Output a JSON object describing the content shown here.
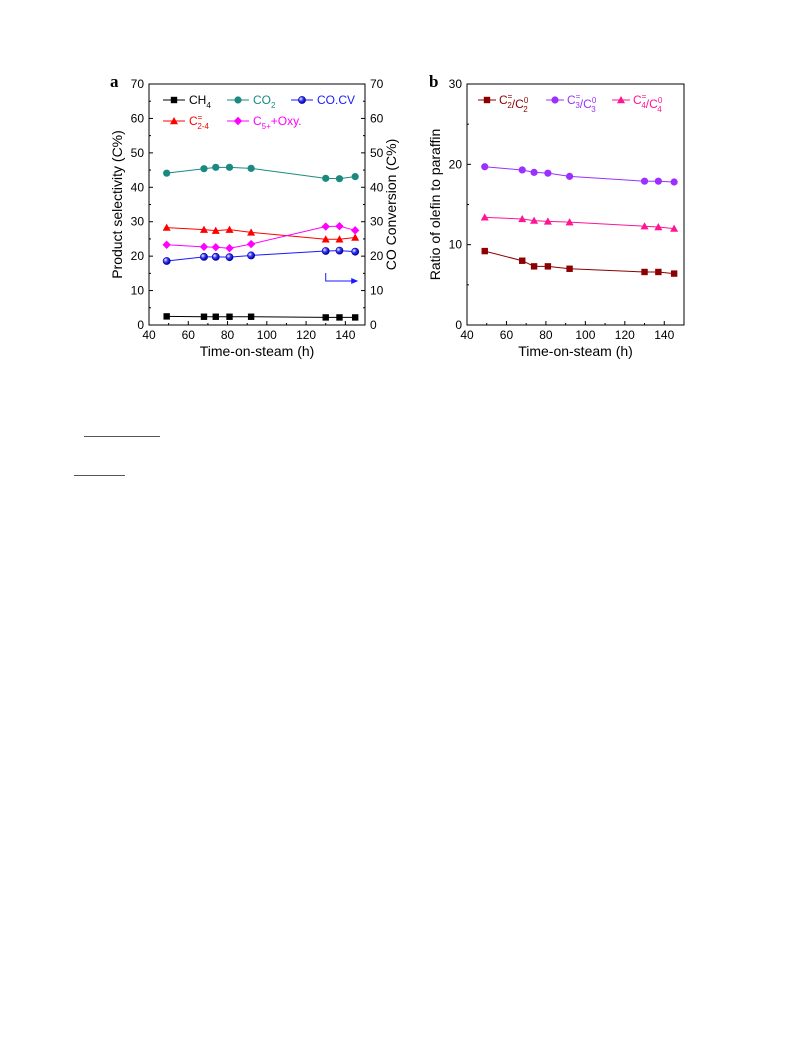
{
  "panels": [
    {
      "label": "a"
    },
    {
      "label": "b"
    }
  ],
  "chart_data": [
    {
      "type": "line",
      "panel": "a",
      "xlabel": "Time-on-steam (h)",
      "ylabel": "Product selectivity (C%)",
      "ylabel_right": "CO Conversion (C%)",
      "xlim": [
        40,
        150
      ],
      "ylim": [
        0,
        70
      ],
      "ylim_right": [
        0,
        70
      ],
      "xticks": [
        40,
        60,
        80,
        100,
        120,
        140
      ],
      "yticks": [
        0,
        10,
        20,
        30,
        40,
        50,
        60,
        70
      ],
      "grid": false,
      "legend_position": "top",
      "arrow_note": "CO.CV plotted on right axis",
      "series": [
        {
          "name": "CH4",
          "legend_main": "CH",
          "legend_sub": "4",
          "legend_sup": "",
          "color": "#000000",
          "marker": "square",
          "axis": "left",
          "x": [
            49,
            68,
            74,
            81,
            92,
            130,
            137,
            145
          ],
          "y": [
            2.5,
            2.4,
            2.4,
            2.4,
            2.4,
            2.2,
            2.2,
            2.2
          ]
        },
        {
          "name": "CO2",
          "legend_main": "CO",
          "legend_sub": "2",
          "legend_sup": "",
          "color": "#1a8a80",
          "marker": "circle",
          "axis": "left",
          "x": [
            49,
            68,
            74,
            81,
            92,
            130,
            137,
            145
          ],
          "y": [
            44.1,
            45.4,
            45.8,
            45.8,
            45.5,
            42.6,
            42.5,
            43.1
          ]
        },
        {
          "name": "CO.CV",
          "legend_main": "CO.CV",
          "legend_sub": "",
          "legend_sup": "",
          "color": "#1a1aff",
          "marker": "ball",
          "axis": "right",
          "x": [
            49,
            68,
            74,
            81,
            92,
            130,
            137,
            145
          ],
          "y": [
            18.6,
            19.8,
            19.8,
            19.7,
            20.2,
            21.5,
            21.6,
            21.3
          ]
        },
        {
          "name": "C2-4=",
          "legend_main": "C",
          "legend_sub": "2-4",
          "legend_sup": "=",
          "color": "#ff0000",
          "marker": "triangle",
          "axis": "left",
          "x": [
            49,
            68,
            74,
            81,
            92,
            130,
            137,
            145
          ],
          "y": [
            28.3,
            27.7,
            27.4,
            27.7,
            26.9,
            24.9,
            24.9,
            25.4
          ]
        },
        {
          "name": "C5++Oxy.",
          "legend_main": "C",
          "legend_sub": "5+",
          "legend_sup": "",
          "legend_suffix": "+Oxy.",
          "color": "#ff00ff",
          "marker": "diamond",
          "axis": "left",
          "x": [
            49,
            68,
            74,
            81,
            92,
            130,
            137,
            145
          ],
          "y": [
            23.3,
            22.7,
            22.6,
            22.3,
            23.5,
            28.6,
            28.7,
            27.5
          ]
        }
      ]
    },
    {
      "type": "line",
      "panel": "b",
      "xlabel": "Time-on-steam (h)",
      "ylabel": "Ratio of olefin to paraffin",
      "xlim": [
        40,
        150
      ],
      "ylim": [
        0,
        30
      ],
      "xticks": [
        40,
        60,
        80,
        100,
        120,
        140
      ],
      "yticks": [
        0,
        10,
        20,
        30
      ],
      "grid": false,
      "legend_position": "top",
      "series": [
        {
          "name": "C2=/C20",
          "legend_parts": [
            [
              "C",
              "2",
              "="
            ],
            [
              "/",
              ""
            ],
            [
              "C",
              "2",
              "0"
            ]
          ],
          "color": "#8b0000",
          "marker": "square",
          "x": [
            49,
            68,
            74,
            81,
            92,
            130,
            137,
            145
          ],
          "y": [
            9.2,
            8.0,
            7.3,
            7.3,
            7.0,
            6.6,
            6.6,
            6.4
          ]
        },
        {
          "name": "C3=/C30",
          "legend_parts": [
            [
              "C",
              "3",
              "="
            ],
            [
              "/",
              ""
            ],
            [
              "C",
              "3",
              "0"
            ]
          ],
          "color": "#9b30ff",
          "marker": "circle",
          "x": [
            49,
            68,
            74,
            81,
            92,
            130,
            137,
            145
          ],
          "y": [
            19.7,
            19.3,
            19.0,
            18.9,
            18.5,
            17.9,
            17.9,
            17.8
          ]
        },
        {
          "name": "C4=/C40",
          "legend_parts": [
            [
              "C",
              "4",
              "="
            ],
            [
              "/",
              ""
            ],
            [
              "C",
              "4",
              "0"
            ]
          ],
          "color": "#ff1493",
          "marker": "triangle",
          "x": [
            49,
            68,
            74,
            81,
            92,
            130,
            137,
            145
          ],
          "y": [
            13.4,
            13.2,
            13.0,
            12.9,
            12.8,
            12.3,
            12.2,
            12.0
          ]
        }
      ]
    }
  ]
}
